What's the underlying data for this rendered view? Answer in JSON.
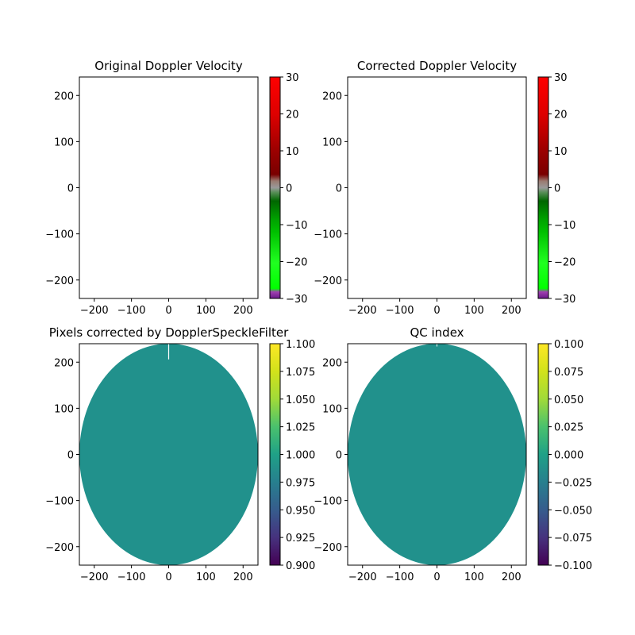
{
  "chart_data": [
    {
      "type": "heatmap",
      "title": "Original Doppler Velocity",
      "xlabel": "",
      "ylabel": "",
      "xlim": [
        -240,
        240
      ],
      "ylim": [
        -240,
        240
      ],
      "xticks": [
        -200,
        -100,
        0,
        100,
        200
      ],
      "yticks": [
        -200,
        -100,
        0,
        100,
        200
      ],
      "field": "empty",
      "colorbar": {
        "colormap": "doppler",
        "range": [
          -30,
          30
        ],
        "ticks": [
          -30,
          -20,
          -10,
          0,
          10,
          20,
          30
        ]
      }
    },
    {
      "type": "heatmap",
      "title": "Corrected Doppler Velocity",
      "xlabel": "",
      "ylabel": "",
      "xlim": [
        -240,
        240
      ],
      "ylim": [
        -240,
        240
      ],
      "xticks": [
        -200,
        -100,
        0,
        100,
        200
      ],
      "yticks": [
        -200,
        -100,
        0,
        100,
        200
      ],
      "field": "empty",
      "colorbar": {
        "colormap": "doppler",
        "range": [
          -30,
          30
        ],
        "ticks": [
          -30,
          -20,
          -10,
          0,
          10,
          20,
          30
        ]
      }
    },
    {
      "type": "heatmap",
      "title": "Pixels corrected by DopplerSpeckleFilter",
      "xlabel": "",
      "ylabel": "",
      "xlim": [
        -240,
        240
      ],
      "ylim": [
        -240,
        240
      ],
      "xticks": [
        -200,
        -100,
        0,
        100,
        200
      ],
      "yticks": [
        -200,
        -100,
        0,
        100,
        200
      ],
      "field": "disk",
      "field_value": 1.0,
      "field_radius": 240,
      "field_color": "#21918c",
      "colorbar": {
        "colormap": "viridis",
        "range": [
          0.9,
          1.1
        ],
        "ticks": [
          0.9,
          0.925,
          0.95,
          0.975,
          1.0,
          1.025,
          1.05,
          1.075,
          1.1
        ]
      }
    },
    {
      "type": "heatmap",
      "title": "QC index",
      "xlabel": "",
      "ylabel": "",
      "xlim": [
        -240,
        240
      ],
      "ylim": [
        -240,
        240
      ],
      "xticks": [
        -200,
        -100,
        0,
        100,
        200
      ],
      "yticks": [
        -200,
        -100,
        0,
        100,
        200
      ],
      "field": "disk",
      "field_value": 0.0,
      "field_radius": 240,
      "field_color": "#21918c",
      "colorbar": {
        "colormap": "viridis",
        "range": [
          -0.1,
          0.1
        ],
        "ticks": [
          -0.1,
          -0.075,
          -0.05,
          -0.025,
          0.0,
          0.025,
          0.05,
          0.075,
          0.1
        ]
      }
    }
  ],
  "tick_labels": {
    "axis": [
      "−200",
      "−100",
      "0",
      "100",
      "200"
    ],
    "doppler": [
      "−30",
      "−20",
      "−10",
      "0",
      "10",
      "20",
      "30"
    ],
    "pixels": [
      "0.900",
      "0.925",
      "0.950",
      "0.975",
      "1.000",
      "1.025",
      "1.050",
      "1.075",
      "1.100"
    ],
    "qc": [
      "−0.100",
      "−0.075",
      "−0.050",
      "−0.025",
      "0.000",
      "0.025",
      "0.050",
      "0.075",
      "0.100"
    ]
  },
  "colormaps": {
    "doppler": [
      [
        0.0,
        "#6a1a8a"
      ],
      [
        0.03,
        "#a040b0"
      ],
      [
        0.045,
        "#00ff00"
      ],
      [
        0.16,
        "#20ff20"
      ],
      [
        0.3,
        "#00c000"
      ],
      [
        0.36,
        "#00a000"
      ],
      [
        0.44,
        "#006600"
      ],
      [
        0.48,
        "#5a8f5a"
      ],
      [
        0.5,
        "#9a9a9a"
      ],
      [
        0.53,
        "#9a7a70"
      ],
      [
        0.56,
        "#7a0000"
      ],
      [
        0.66,
        "#990000"
      ],
      [
        0.83,
        "#dd0000"
      ],
      [
        1.0,
        "#ff0000"
      ]
    ],
    "viridis": [
      [
        0.0,
        "#440154"
      ],
      [
        0.125,
        "#46327e"
      ],
      [
        0.25,
        "#365c8d"
      ],
      [
        0.375,
        "#277f8e"
      ],
      [
        0.5,
        "#1fa187"
      ],
      [
        0.625,
        "#4ac16d"
      ],
      [
        0.75,
        "#a0da39"
      ],
      [
        0.875,
        "#d2e21b"
      ],
      [
        1.0,
        "#fde725"
      ]
    ]
  }
}
